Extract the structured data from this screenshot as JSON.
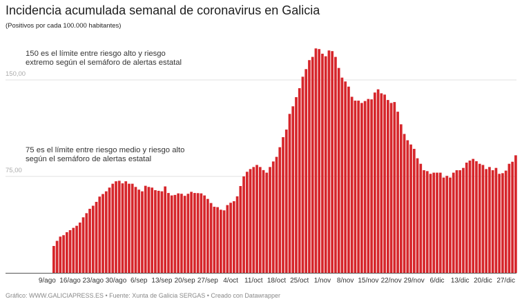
{
  "title": "Incidencia acumulada semanal de coronavirus en Galicia",
  "subtitle": "(Positivos por cada 100.000 habitantes)",
  "annotations": [
    "150 es el límite entre riesgo alto y riesgo extremo según el semáforo de alertas estatal",
    "75 es el límite entre riesgo medio y riesgo alto según el semáforo de alertas estatal"
  ],
  "footer": "Gráfico: WWW.GALICIAPRESS.ES • Fuente: Xunta de Galicia SERGAS • Creado con Datawrapper",
  "chart_data": {
    "type": "bar",
    "title": "Incidencia acumulada semanal de coronavirus en Galicia",
    "ylabel": "",
    "xlabel": "",
    "ylim": [
      0,
      180
    ],
    "y_ticks": [
      {
        "value": 75,
        "label": "75,00"
      },
      {
        "value": 150,
        "label": "150,00"
      }
    ],
    "grid": true,
    "bar_color": "#d6262b",
    "x_tick_labels": [
      "9/ago",
      "16/ago",
      "23/ago",
      "30/ago",
      "6/sep",
      "13/sep",
      "20/sep",
      "27/sep",
      "4/oct",
      "11/oct",
      "18/oct",
      "25/oct",
      "1/nov",
      "8/nov",
      "15/nov",
      "22/nov",
      "29/nov",
      "6/dic",
      "13/dic",
      "20/dic",
      "27/dic"
    ],
    "categories": [
      "11/ago",
      "12/ago",
      "13/ago",
      "14/ago",
      "15/ago",
      "16/ago",
      "17/ago",
      "18/ago",
      "19/ago",
      "20/ago",
      "21/ago",
      "22/ago",
      "23/ago",
      "24/ago",
      "25/ago",
      "26/ago",
      "27/ago",
      "28/ago",
      "29/ago",
      "30/ago",
      "31/ago",
      "1/sep",
      "2/sep",
      "3/sep",
      "4/sep",
      "5/sep",
      "6/sep",
      "7/sep",
      "8/sep",
      "9/sep",
      "10/sep",
      "11/sep",
      "12/sep",
      "13/sep",
      "14/sep",
      "15/sep",
      "16/sep",
      "17/sep",
      "18/sep",
      "19/sep",
      "20/sep",
      "21/sep",
      "22/sep",
      "23/sep",
      "24/sep",
      "25/sep",
      "26/sep",
      "27/sep",
      "28/sep",
      "29/sep",
      "30/sep",
      "1/oct",
      "2/oct",
      "3/oct",
      "4/oct",
      "5/oct",
      "6/oct",
      "7/oct",
      "8/oct",
      "9/oct",
      "10/oct",
      "11/oct",
      "12/oct",
      "13/oct",
      "14/oct",
      "15/oct",
      "16/oct",
      "17/oct",
      "18/oct",
      "19/oct",
      "20/oct",
      "21/oct",
      "22/oct",
      "23/oct",
      "24/oct",
      "25/oct",
      "26/oct",
      "27/oct",
      "28/oct",
      "29/oct",
      "30/oct",
      "31/oct",
      "1/nov",
      "2/nov",
      "3/nov",
      "4/nov",
      "5/nov",
      "6/nov",
      "7/nov",
      "8/nov",
      "9/nov",
      "10/nov",
      "11/nov",
      "12/nov",
      "13/nov",
      "14/nov",
      "15/nov",
      "16/nov",
      "17/nov",
      "18/nov",
      "19/nov",
      "20/nov",
      "21/nov",
      "22/nov",
      "23/nov",
      "24/nov",
      "25/nov",
      "26/nov",
      "27/nov",
      "28/nov",
      "29/nov",
      "30/nov",
      "1/dic",
      "2/dic",
      "3/dic",
      "4/dic",
      "5/dic",
      "6/dic",
      "7/dic",
      "8/dic",
      "9/dic",
      "10/dic",
      "11/dic",
      "12/dic",
      "13/dic",
      "14/dic",
      "15/dic",
      "16/dic",
      "17/dic",
      "18/dic",
      "19/dic",
      "20/dic",
      "21/dic",
      "22/dic",
      "23/dic",
      "24/dic",
      "25/dic",
      "26/dic",
      "27/dic",
      "28/dic",
      "29/dic",
      "30/dic"
    ],
    "values": [
      20.9,
      24.9,
      28.2,
      29.3,
      31.6,
      33.2,
      35.0,
      36.6,
      39.1,
      43.2,
      46.4,
      49.8,
      52.2,
      55.2,
      59.3,
      61.3,
      63.4,
      66.3,
      69.3,
      71.2,
      71.6,
      69.6,
      71.2,
      69.3,
      69.3,
      66.8,
      64.7,
      63.4,
      67.7,
      66.8,
      66.3,
      64.3,
      63.8,
      63.4,
      67.2,
      62.1,
      60.2,
      60.6,
      61.8,
      61.5,
      59.9,
      61.5,
      63.0,
      62.1,
      62.0,
      61.8,
      60.2,
      57.5,
      54.3,
      51.4,
      51.1,
      49.1,
      48.6,
      52.7,
      54.5,
      55.7,
      59.5,
      67.5,
      75.0,
      78.6,
      80.7,
      82.3,
      83.9,
      82.3,
      79.9,
      77.9,
      82.3,
      86.6,
      90.2,
      97.7,
      105.5,
      111.4,
      123.6,
      129.5,
      136.6,
      143.6,
      152.5,
      158.4,
      165.4,
      167.9,
      174.5,
      174.0,
      170.4,
      168.4,
      172.9,
      172.4,
      167.9,
      159.3,
      151.8,
      148.8,
      144.8,
      136.9,
      133.9,
      133.9,
      132.1,
      133.6,
      135.2,
      134.9,
      140.2,
      142.7,
      139.6,
      138.6,
      134.4,
      132.1,
      132.8,
      125.3,
      115.5,
      108.0,
      103.1,
      99.8,
      96.4,
      89.1,
      84.8,
      79.8,
      79.1,
      77.0,
      77.9,
      77.9,
      77.9,
      74.1,
      75.4,
      74.1,
      77.9,
      79.8,
      79.8,
      81.6,
      85.7,
      87.3,
      88.6,
      86.8,
      84.8,
      83.9,
      80.7,
      82.3,
      79.8,
      81.6,
      77.0,
      77.5,
      79.5,
      84.8,
      86.4,
      91.4
    ]
  }
}
